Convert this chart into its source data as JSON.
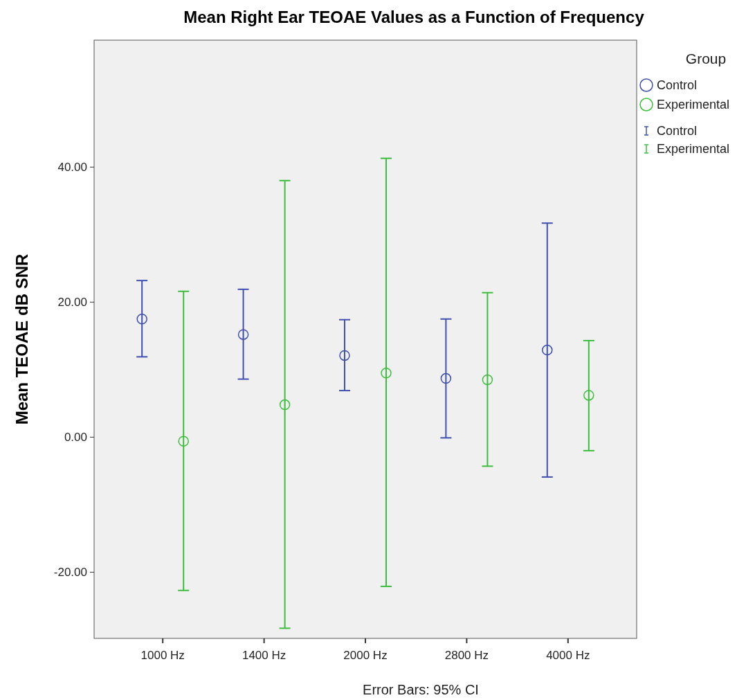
{
  "chart_data": {
    "type": "scatter",
    "title": "Mean Right Ear TEOAE Values as a Function of Frequency",
    "ylabel": "Mean TEOAE dB SNR",
    "legend_title": "Group",
    "annotations": [
      "Error Bars: 95% CI"
    ],
    "categories": [
      "1000 Hz",
      "1400 Hz",
      "2000 Hz",
      "2800 Hz",
      "4000 Hz"
    ],
    "ylim": [
      -29.8,
      58.8
    ],
    "yticks": [
      {
        "value": -20,
        "label": "-20.00"
      },
      {
        "value": 0,
        "label": "0.00"
      },
      {
        "value": 20,
        "label": "20.00"
      },
      {
        "value": 40,
        "label": "40.00"
      }
    ],
    "grid": false,
    "legend": "top right",
    "marker": "circle",
    "series": [
      {
        "name": "Control",
        "color": "#3f4fb0",
        "values": [
          17.5,
          15.2,
          12.1,
          8.7,
          12.9
        ],
        "errors": [
          [
            11.9,
            23.2
          ],
          [
            8.6,
            21.9
          ],
          [
            6.9,
            17.4
          ],
          [
            -0.1,
            17.5
          ],
          [
            -5.9,
            31.7
          ]
        ]
      },
      {
        "name": "Experimental",
        "color": "#3cbe3c",
        "values": [
          -0.6,
          4.8,
          9.5,
          8.5,
          6.2
        ],
        "errors": [
          [
            -22.7,
            21.6
          ],
          [
            -28.3,
            38.0
          ],
          [
            -22.1,
            41.3
          ],
          [
            -4.3,
            21.4
          ],
          [
            -2.0,
            14.3
          ]
        ]
      }
    ]
  }
}
